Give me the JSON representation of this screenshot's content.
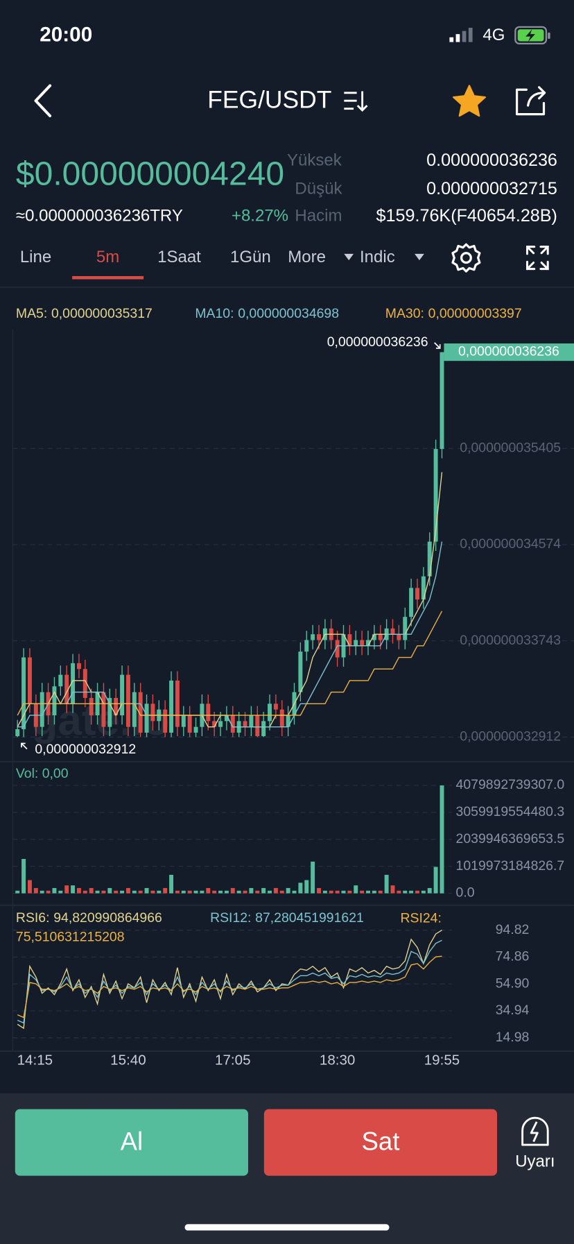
{
  "status_bar": {
    "time": "20:00",
    "network": "4G"
  },
  "header": {
    "pair": "FEG/USDT"
  },
  "ticker": {
    "price": "$0.000000004240",
    "converted": "≈0.000000036236TRY",
    "change": "+8.27%",
    "stats": [
      {
        "label": "Yüksek",
        "value": "0.000000036236"
      },
      {
        "label": "Düşük",
        "value": "0.000000032715"
      },
      {
        "label": "Hacim",
        "value": "$159.76K(F40654.28B)"
      }
    ]
  },
  "tabs": [
    "Line",
    "5m",
    "1Saat",
    "1Gün",
    "More",
    "Indic"
  ],
  "active_tab": "5m",
  "watermark": "gate.io",
  "chart_data": [
    {
      "type": "candlestick",
      "categories": [
        null,
        "14:15",
        null,
        null,
        null,
        null,
        null,
        null,
        null,
        null,
        null,
        null,
        null,
        null,
        null,
        null,
        null,
        null,
        "15:40",
        null,
        null,
        null,
        null,
        null,
        null,
        null,
        null,
        null,
        null,
        null,
        null,
        null,
        null,
        null,
        null,
        "17:05",
        null,
        null,
        null,
        null,
        null,
        null,
        null,
        null,
        null,
        null,
        null,
        null,
        null,
        null,
        null,
        null,
        "18:30",
        null,
        null,
        null,
        null,
        null,
        null,
        null,
        null,
        null,
        null,
        null,
        null,
        null,
        null,
        null,
        null,
        "19:55"
      ],
      "open": [
        3.292e-08,
        3.298e-08,
        3.36e-08,
        3.32e-08,
        3.3e-08,
        3.33e-08,
        3.31e-08,
        3.335e-08,
        3.345e-08,
        3.32e-08,
        3.355e-08,
        3.35e-08,
        3.325e-08,
        3.31e-08,
        3.33e-08,
        3.3e-08,
        3.325e-08,
        3.31e-08,
        3.345e-08,
        3.3e-08,
        3.33e-08,
        3.295e-08,
        3.32e-08,
        3.305e-08,
        3.315e-08,
        3.295e-08,
        3.34e-08,
        3.3e-08,
        3.31e-08,
        3.295e-08,
        3.3e-08,
        3.32e-08,
        3.305e-08,
        3.3e-08,
        3.305e-08,
        3.31e-08,
        3.295e-08,
        3.305e-08,
        3.3e-08,
        3.31e-08,
        3.292e-08,
        3.305e-08,
        3.32e-08,
        3.315e-08,
        3.3e-08,
        3.31e-08,
        3.33e-08,
        3.365e-08,
        3.375e-08,
        3.38e-08,
        3.375e-08,
        3.385e-08,
        3.375e-08,
        3.36e-08,
        3.38e-08,
        3.37e-08,
        3.375e-08,
        3.37e-08,
        3.375e-08,
        3.38e-08,
        3.375e-08,
        3.385e-08,
        3.38e-08,
        3.375e-08,
        3.395e-08,
        3.42e-08,
        3.41e-08,
        3.43e-08,
        3.46e-08,
        3.54e-08
      ],
      "high": [
        3.306e-08,
        3.368e-08,
        3.368e-08,
        3.328e-08,
        3.338e-08,
        3.338e-08,
        3.343e-08,
        3.353e-08,
        3.353e-08,
        3.363e-08,
        3.363e-08,
        3.358e-08,
        3.333e-08,
        3.338e-08,
        3.338e-08,
        3.333e-08,
        3.333e-08,
        3.353e-08,
        3.353e-08,
        3.338e-08,
        3.338e-08,
        3.328e-08,
        3.328e-08,
        3.323e-08,
        3.323e-08,
        3.348e-08,
        3.348e-08,
        3.318e-08,
        3.318e-08,
        3.308e-08,
        3.328e-08,
        3.328e-08,
        3.313e-08,
        3.313e-08,
        3.318e-08,
        3.318e-08,
        3.313e-08,
        3.313e-08,
        3.318e-08,
        3.318e-08,
        3.313e-08,
        3.328e-08,
        3.328e-08,
        3.323e-08,
        3.318e-08,
        3.338e-08,
        3.373e-08,
        3.383e-08,
        3.388e-08,
        3.388e-08,
        3.393e-08,
        3.393e-08,
        3.383e-08,
        3.388e-08,
        3.388e-08,
        3.383e-08,
        3.383e-08,
        3.383e-08,
        3.388e-08,
        3.388e-08,
        3.393e-08,
        3.393e-08,
        3.388e-08,
        3.403e-08,
        3.428e-08,
        3.428e-08,
        3.438e-08,
        3.468e-08,
        3.548e-08,
        3.6236e-08
      ],
      "low": [
        3.2912e-08,
        3.2912e-08,
        3.312e-08,
        3.292e-08,
        3.292e-08,
        3.302e-08,
        3.302e-08,
        3.327e-08,
        3.312e-08,
        3.312e-08,
        3.342e-08,
        3.317e-08,
        3.302e-08,
        3.302e-08,
        3.292e-08,
        3.292e-08,
        3.302e-08,
        3.302e-08,
        3.292e-08,
        3.292e-08,
        3.2912e-08,
        3.2912e-08,
        3.297e-08,
        3.297e-08,
        3.2912e-08,
        3.2912e-08,
        3.292e-08,
        3.292e-08,
        3.2912e-08,
        3.2912e-08,
        3.292e-08,
        3.297e-08,
        3.292e-08,
        3.292e-08,
        3.297e-08,
        3.2912e-08,
        3.2912e-08,
        3.292e-08,
        3.292e-08,
        3.2912e-08,
        3.2912e-08,
        3.297e-08,
        3.307e-08,
        3.292e-08,
        3.292e-08,
        3.302e-08,
        3.322e-08,
        3.357e-08,
        3.367e-08,
        3.367e-08,
        3.367e-08,
        3.367e-08,
        3.352e-08,
        3.352e-08,
        3.362e-08,
        3.362e-08,
        3.362e-08,
        3.362e-08,
        3.367e-08,
        3.367e-08,
        3.367e-08,
        3.372e-08,
        3.367e-08,
        3.367e-08,
        3.387e-08,
        3.402e-08,
        3.402e-08,
        3.422e-08,
        3.452e-08,
        3.532e-08
      ],
      "close": [
        3.298e-08,
        3.36e-08,
        3.32e-08,
        3.3e-08,
        3.33e-08,
        3.31e-08,
        3.335e-08,
        3.345e-08,
        3.32e-08,
        3.355e-08,
        3.35e-08,
        3.325e-08,
        3.31e-08,
        3.33e-08,
        3.3e-08,
        3.325e-08,
        3.31e-08,
        3.345e-08,
        3.3e-08,
        3.33e-08,
        3.295e-08,
        3.32e-08,
        3.305e-08,
        3.315e-08,
        3.295e-08,
        3.34e-08,
        3.3e-08,
        3.31e-08,
        3.295e-08,
        3.3e-08,
        3.32e-08,
        3.305e-08,
        3.3e-08,
        3.305e-08,
        3.31e-08,
        3.295e-08,
        3.305e-08,
        3.3e-08,
        3.31e-08,
        3.292e-08,
        3.305e-08,
        3.32e-08,
        3.315e-08,
        3.3e-08,
        3.31e-08,
        3.33e-08,
        3.365e-08,
        3.375e-08,
        3.38e-08,
        3.375e-08,
        3.385e-08,
        3.375e-08,
        3.36e-08,
        3.38e-08,
        3.37e-08,
        3.375e-08,
        3.37e-08,
        3.375e-08,
        3.38e-08,
        3.375e-08,
        3.385e-08,
        3.38e-08,
        3.375e-08,
        3.395e-08,
        3.42e-08,
        3.41e-08,
        3.43e-08,
        3.46e-08,
        3.54e-08,
        3.6236e-08
      ],
      "up_color": "#55bd9c",
      "down_color": "#d94b46",
      "overlays": [
        {
          "label": "MA5:",
          "current": "0,000000035317",
          "color": "#e3d48f",
          "values": [
            3.3e-08,
            3.31e-08,
            3.32e-08,
            3.32e-08,
            3.32e-08,
            3.32e-08,
            3.33e-08,
            3.32e-08,
            3.33e-08,
            3.34e-08,
            3.34e-08,
            3.34e-08,
            3.33e-08,
            3.33e-08,
            3.32e-08,
            3.32e-08,
            3.31e-08,
            3.32e-08,
            3.32e-08,
            3.32e-08,
            3.31e-08,
            3.31e-08,
            3.31e-08,
            3.31e-08,
            3.31e-08,
            3.31e-08,
            3.31e-08,
            3.31e-08,
            3.31e-08,
            3.31e-08,
            3.31e-08,
            3.3e-08,
            3.3e-08,
            3.31e-08,
            3.31e-08,
            3.3e-08,
            3.3e-08,
            3.3e-08,
            3.3e-08,
            3.3e-08,
            3.3e-08,
            3.3e-08,
            3.31e-08,
            3.31e-08,
            3.31e-08,
            3.32e-08,
            3.33e-08,
            3.34e-08,
            3.36e-08,
            3.37e-08,
            3.38e-08,
            3.38e-08,
            3.38e-08,
            3.38e-08,
            3.37e-08,
            3.37e-08,
            3.37e-08,
            3.37e-08,
            3.38e-08,
            3.38e-08,
            3.38e-08,
            3.38e-08,
            3.38e-08,
            3.38e-08,
            3.39e-08,
            3.4e-08,
            3.41e-08,
            3.43e-08,
            3.47e-08,
            3.52e-08
          ]
        },
        {
          "label": "MA10:",
          "current": "0,000000034698",
          "color": "#7ec3cf",
          "values": [
            3.3e-08,
            3.3e-08,
            3.31e-08,
            3.31e-08,
            3.31e-08,
            3.32e-08,
            3.32e-08,
            3.32e-08,
            3.32e-08,
            3.33e-08,
            3.33e-08,
            3.33e-08,
            3.33e-08,
            3.33e-08,
            3.33e-08,
            3.32e-08,
            3.32e-08,
            3.32e-08,
            3.32e-08,
            3.32e-08,
            3.32e-08,
            3.31e-08,
            3.31e-08,
            3.31e-08,
            3.31e-08,
            3.31e-08,
            3.31e-08,
            3.31e-08,
            3.31e-08,
            3.31e-08,
            3.31e-08,
            3.31e-08,
            3.31e-08,
            3.31e-08,
            3.31e-08,
            3.3e-08,
            3.3e-08,
            3.3e-08,
            3.3e-08,
            3.3e-08,
            3.3e-08,
            3.3e-08,
            3.3e-08,
            3.3e-08,
            3.3e-08,
            3.31e-08,
            3.32e-08,
            3.32e-08,
            3.33e-08,
            3.34e-08,
            3.35e-08,
            3.36e-08,
            3.37e-08,
            3.37e-08,
            3.37e-08,
            3.37e-08,
            3.37e-08,
            3.37e-08,
            3.37e-08,
            3.37e-08,
            3.38e-08,
            3.38e-08,
            3.38e-08,
            3.38e-08,
            3.38e-08,
            3.39e-08,
            3.4e-08,
            3.41e-08,
            3.43e-08,
            3.46e-08
          ]
        },
        {
          "label": "MA30:",
          "current": "0,00000003397",
          "color": "#eeb23e",
          "values": [
            3.31e-08,
            3.32e-08,
            3.32e-08,
            3.32e-08,
            3.32e-08,
            3.32e-08,
            3.32e-08,
            3.32e-08,
            3.32e-08,
            3.32e-08,
            3.32e-08,
            3.32e-08,
            3.32e-08,
            3.32e-08,
            3.32e-08,
            3.32e-08,
            3.32e-08,
            3.32e-08,
            3.32e-08,
            3.32e-08,
            3.31e-08,
            3.31e-08,
            3.31e-08,
            3.31e-08,
            3.31e-08,
            3.31e-08,
            3.31e-08,
            3.31e-08,
            3.31e-08,
            3.31e-08,
            3.31e-08,
            3.31e-08,
            3.31e-08,
            3.31e-08,
            3.31e-08,
            3.31e-08,
            3.31e-08,
            3.31e-08,
            3.31e-08,
            3.31e-08,
            3.31e-08,
            3.31e-08,
            3.31e-08,
            3.31e-08,
            3.31e-08,
            3.31e-08,
            3.31e-08,
            3.32e-08,
            3.32e-08,
            3.32e-08,
            3.32e-08,
            3.33e-08,
            3.33e-08,
            3.33e-08,
            3.34e-08,
            3.34e-08,
            3.34e-08,
            3.34e-08,
            3.35e-08,
            3.35e-08,
            3.35e-08,
            3.35e-08,
            3.36e-08,
            3.36e-08,
            3.36e-08,
            3.37e-08,
            3.37e-08,
            3.38e-08,
            3.39e-08,
            3.4e-08
          ]
        }
      ],
      "last_price": {
        "value": 3.6236e-08,
        "label": "0,000000036236"
      },
      "high_marker": {
        "value": 3.6236e-08,
        "label": "0,000000036236"
      },
      "low_marker": {
        "value": 3.2912e-08,
        "label": "0,000000032912"
      },
      "ylim": [
        3.27e-08,
        3.6434e-08
      ],
      "yticks": [
        {
          "value": 3.5405e-08,
          "label": "0,000000035405"
        },
        {
          "value": 3.4574e-08,
          "label": "0,000000034574"
        },
        {
          "value": 3.3743e-08,
          "label": "0,000000033743"
        },
        {
          "value": 3.2912e-08,
          "label": "0,000000032912"
        }
      ],
      "grid": true
    },
    {
      "type": "bar",
      "title": "Vol: 0,00",
      "title_color": "#55bd9c",
      "values": [
        100000000000.0,
        1300000000000.0,
        500000000000.0,
        200000000000.0,
        100000000000.0,
        100000000000.0,
        200000000000.0,
        100000000000.0,
        300000000000.0,
        300000000000.0,
        200000000000.0,
        100000000000.0,
        200000000000.0,
        100000000000.0,
        100000000000.0,
        200000000000.0,
        100000000000.0,
        100000000000.0,
        200000000000.0,
        100000000000.0,
        100000000000.0,
        200000000000.0,
        100000000000.0,
        100000000000.0,
        200000000000.0,
        700000000000.0,
        100000000000.0,
        100000000000.0,
        100000000000.0,
        100000000000.0,
        100000000000.0,
        200000000000.0,
        100000000000.0,
        100000000000.0,
        100000000000.0,
        200000000000.0,
        100000000000.0,
        100000000000.0,
        200000000000.0,
        100000000000.0,
        200000000000.0,
        100000000000.0,
        200000000000.0,
        100000000000.0,
        200000000000.0,
        100000000000.0,
        400000000000.0,
        500000000000.0,
        1200000000000.0,
        200000000000.0,
        100000000000.0,
        100000000000.0,
        100000000000.0,
        100000000000.0,
        100000000000.0,
        300000000000.0,
        100000000000.0,
        100000000000.0,
        100000000000.0,
        100000000000.0,
        700000000000.0,
        300000000000.0,
        100000000000.0,
        100000000000.0,
        100000000000.0,
        100000000000.0,
        100000000000.0,
        200000000000.0,
        1000000000000.0,
        4079892739307
      ],
      "up_color": "#55bd9c",
      "down_color": "#d94b46",
      "ylim": [
        0,
        4230000000000
      ],
      "yticks": [
        {
          "value": 0,
          "label": "0.0"
        },
        1019973184826.7,
        2039946369653.5,
        3059919554480.3,
        {
          "value": 4079892739307,
          "label": "4079892739307.0"
        }
      ],
      "grid": true
    },
    {
      "type": "line",
      "series": [
        {
          "name": "RSI6:",
          "current": "94,820990864966",
          "color": "#e3d48f",
          "values": [
            25,
            22,
            68,
            60,
            48,
            52,
            47,
            55,
            66,
            50,
            58,
            45,
            53,
            40,
            62,
            48,
            57,
            44,
            55,
            52,
            60,
            41,
            58,
            50,
            56,
            47,
            67,
            45,
            55,
            42,
            60,
            50,
            58,
            44,
            62,
            47,
            55,
            51,
            57,
            49,
            52,
            58,
            50,
            55,
            54,
            62,
            66,
            65,
            68,
            64,
            67,
            60,
            63,
            52,
            66,
            64,
            67,
            63,
            65,
            62,
            68,
            66,
            67,
            72,
            88,
            82,
            70,
            84,
            92,
            94.82
          ]
        },
        {
          "name": "RSI12:",
          "current": "87,280451991621",
          "color": "#7ec3cf",
          "values": [
            28,
            26,
            62,
            58,
            50,
            51,
            49,
            53,
            60,
            51,
            55,
            48,
            52,
            45,
            57,
            50,
            54,
            48,
            53,
            52,
            56,
            47,
            55,
            51,
            54,
            50,
            60,
            49,
            53,
            47,
            56,
            51,
            55,
            49,
            57,
            50,
            53,
            52,
            55,
            51,
            52,
            55,
            52,
            54,
            54,
            58,
            61,
            61,
            63,
            61,
            63,
            59,
            60,
            55,
            61,
            60,
            62,
            60,
            61,
            60,
            63,
            62,
            63,
            66,
            79,
            77,
            70,
            79,
            85,
            87.28
          ]
        },
        {
          "name": "RSI24:",
          "current": "75,510631215208",
          "color": "#eeb23e",
          "values": [
            32,
            30,
            56,
            55,
            51,
            51,
            50,
            52,
            55,
            51,
            53,
            50,
            51,
            48,
            53,
            51,
            52,
            50,
            52,
            51,
            53,
            49,
            52,
            51,
            52,
            50,
            55,
            50,
            51,
            49,
            53,
            51,
            52,
            50,
            53,
            51,
            52,
            51,
            53,
            51,
            51,
            52,
            51,
            52,
            52,
            54,
            56,
            56,
            57,
            56,
            57,
            55,
            56,
            53,
            56,
            56,
            57,
            56,
            57,
            56,
            58,
            57,
            58,
            60,
            69,
            70,
            66,
            71,
            75,
            75.51
          ]
        }
      ],
      "ylim": [
        5,
        108
      ],
      "yticks": [
        94.82,
        74.86,
        {
          "value": 54.9,
          "label": "54.90"
        },
        34.94,
        14.98
      ],
      "grid": true
    }
  ],
  "actions": {
    "buy": "Al",
    "sell": "Sat",
    "alert": "Uyarı"
  }
}
